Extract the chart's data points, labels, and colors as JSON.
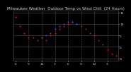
{
  "title": "Milwaukee Weather  Outdoor Temp vs Wind Chill  (24 Hours)",
  "bg_color": "#000000",
  "plot_bg_color": "#000000",
  "grid_color": "#555555",
  "temp_x": [
    0,
    1,
    2,
    3,
    4,
    5,
    6,
    7,
    8,
    9,
    10,
    11,
    12,
    13,
    14,
    15,
    16,
    17,
    18,
    19,
    20,
    21,
    22,
    23
  ],
  "temp_y": [
    13,
    9,
    6,
    4,
    4,
    3,
    4,
    3,
    5,
    6,
    8,
    9,
    10,
    11,
    10,
    9,
    8,
    6,
    5,
    3,
    1,
    -1,
    -3,
    -4
  ],
  "wchill_x": [
    6,
    7,
    8,
    9,
    10,
    11,
    12,
    13,
    14
  ],
  "wchill_y": [
    4,
    5,
    6,
    8,
    9,
    10,
    11,
    11,
    10
  ],
  "temp_color": "#ff0000",
  "wchill_color": "#4444ff",
  "dot_size": 2,
  "ylim": [
    -6,
    16
  ],
  "xlim": [
    -0.5,
    23.5
  ],
  "title_fontsize": 4.0,
  "tick_fontsize": 3.2,
  "y_ticks": [
    -5,
    0,
    5,
    10,
    15
  ],
  "x_tick_positions": [
    0,
    3,
    6,
    9,
    12,
    15,
    18,
    21
  ],
  "x_tick_labels": [
    "6",
    "9",
    "12",
    "3",
    "6",
    "9",
    "12",
    "3"
  ],
  "vgrid_positions": [
    3,
    6,
    9,
    12,
    15,
    18,
    21
  ],
  "text_color": "#cccccc"
}
